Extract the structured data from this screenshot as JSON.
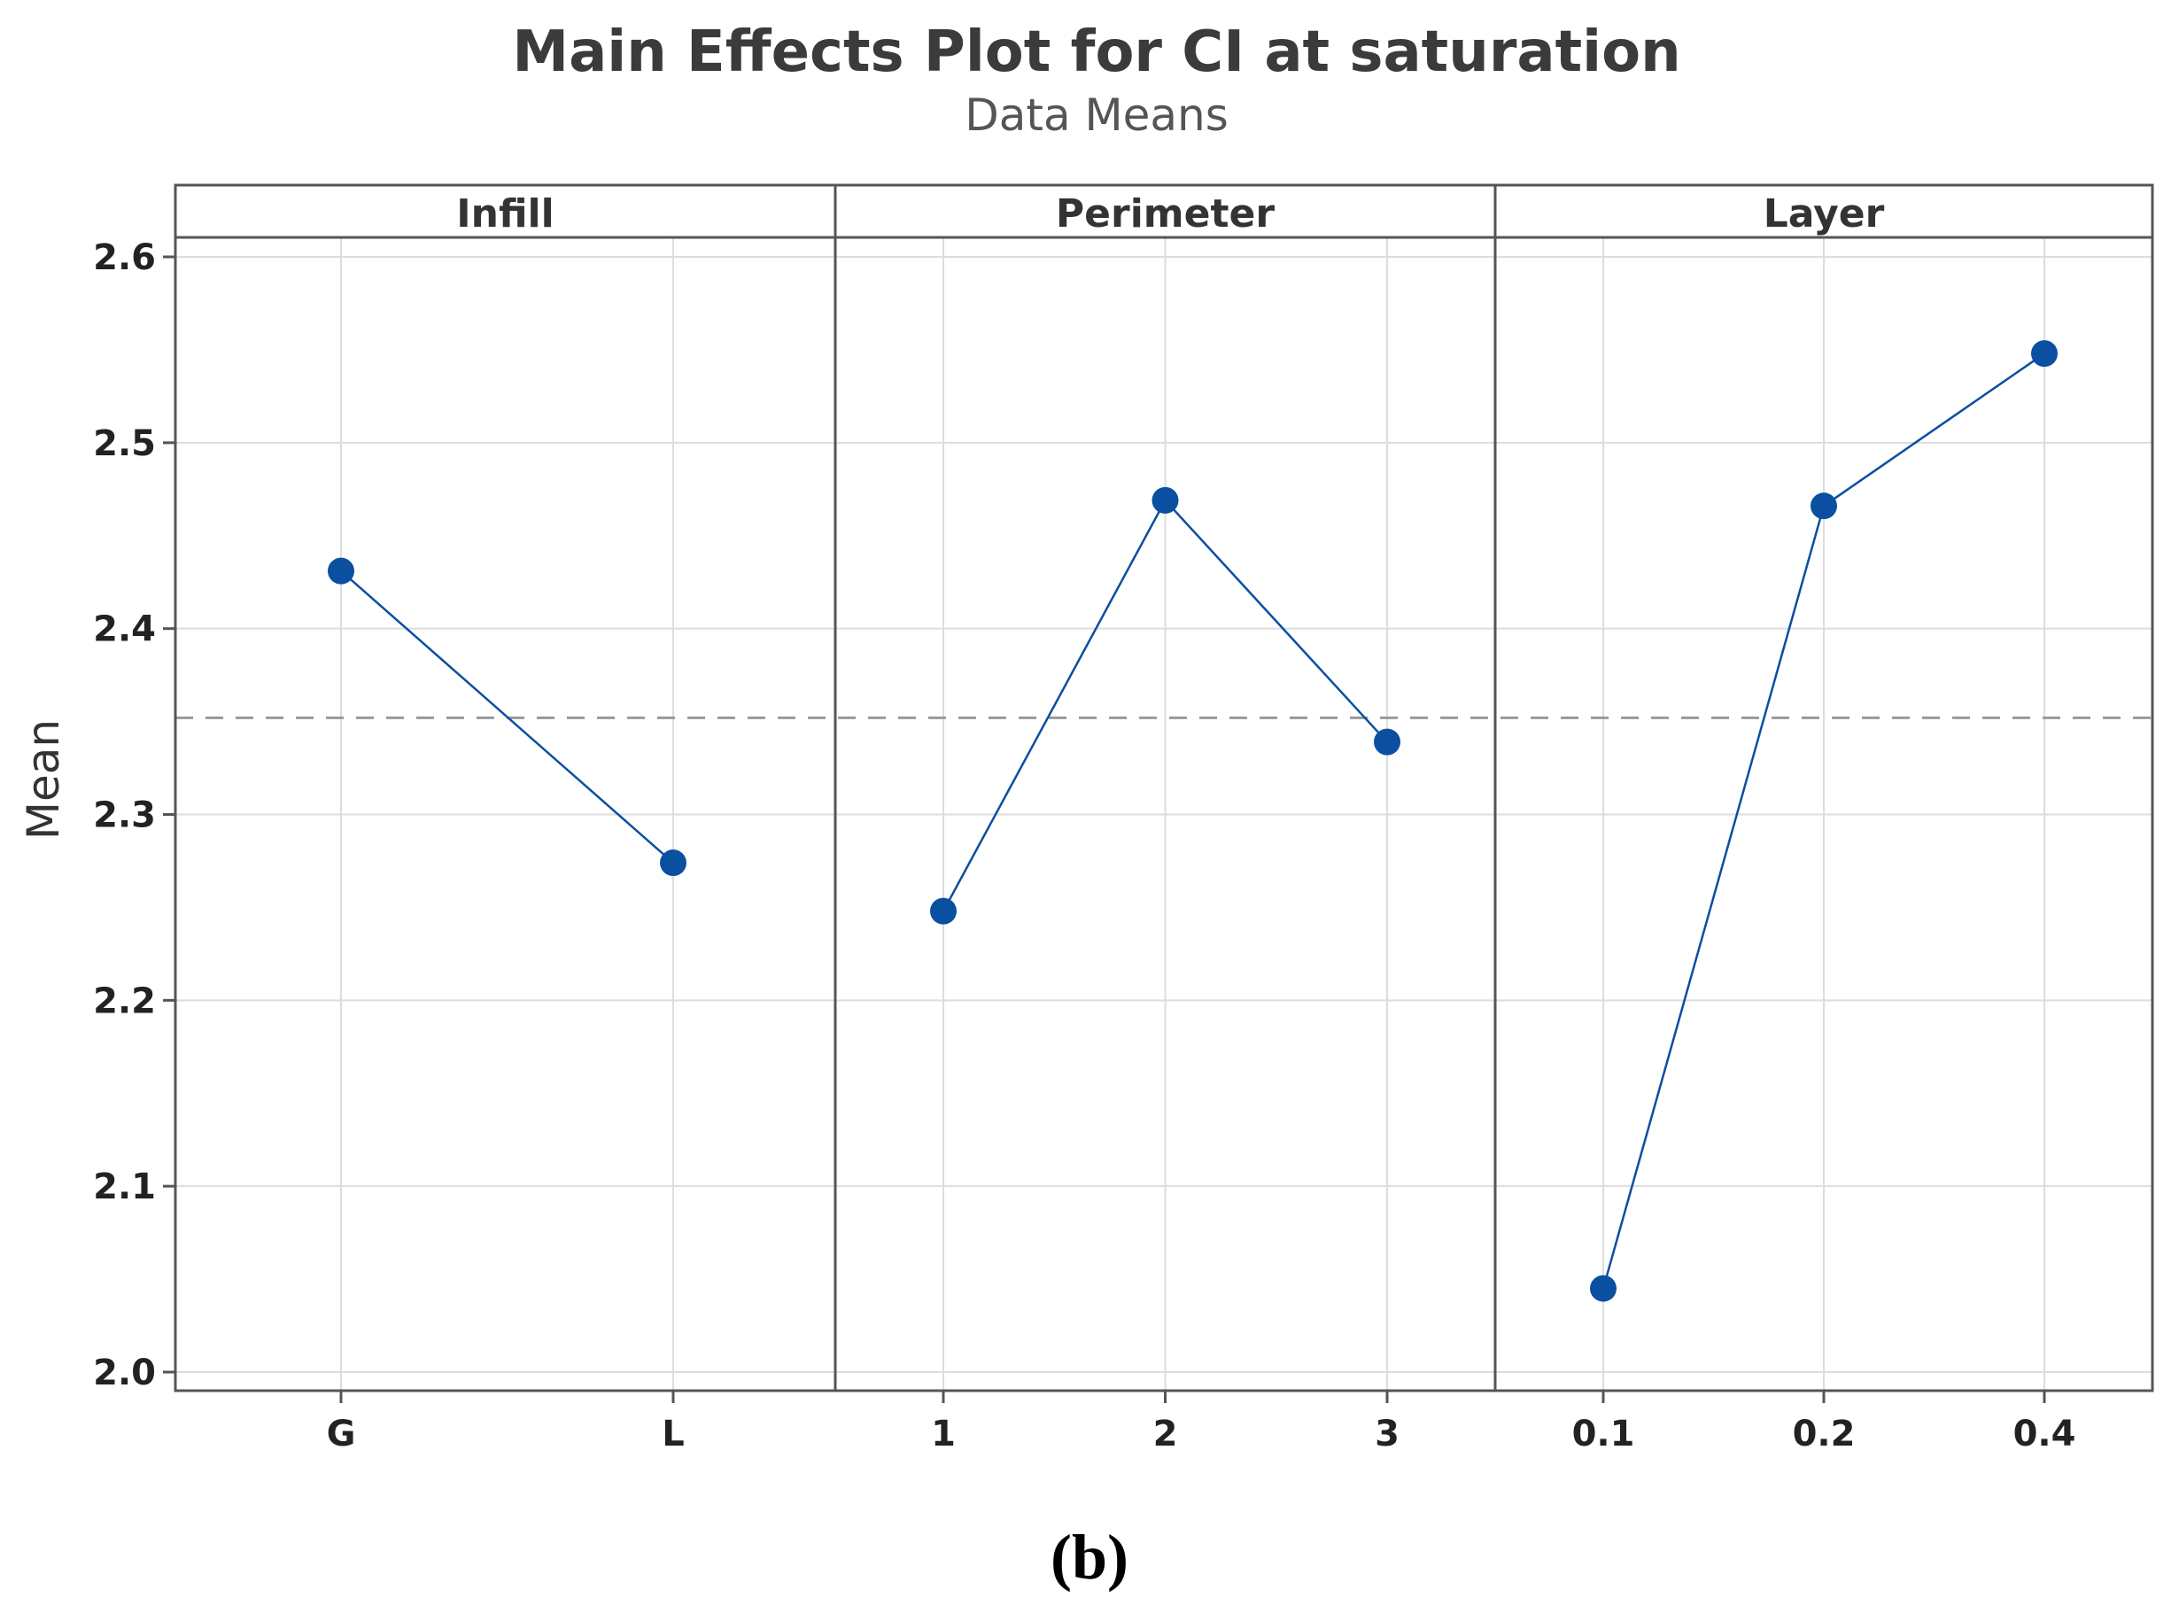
{
  "chart_data": {
    "type": "line",
    "title": "Main Effects Plot for CI at saturation",
    "subtitle": "Data Means",
    "ylabel": "Mean",
    "ylim": [
      2.0,
      2.6
    ],
    "yticks": [
      "2.0",
      "2.1",
      "2.2",
      "2.3",
      "2.4",
      "2.5",
      "2.6"
    ],
    "overall_mean": 2.352,
    "grid": true,
    "colors": {
      "series": "#0a4fa0",
      "reference": "#999999"
    },
    "panels": [
      {
        "factor": "Infill",
        "categories": [
          "G",
          "L"
        ],
        "values": [
          2.431,
          2.274
        ]
      },
      {
        "factor": "Perimeter",
        "categories": [
          "1",
          "2",
          "3"
        ],
        "values": [
          2.248,
          2.469,
          2.339
        ]
      },
      {
        "factor": "Layer",
        "categories": [
          "0.1",
          "0.2",
          "0.4"
        ],
        "values": [
          2.045,
          2.466,
          2.548
        ]
      }
    ]
  },
  "caption": "(b)"
}
